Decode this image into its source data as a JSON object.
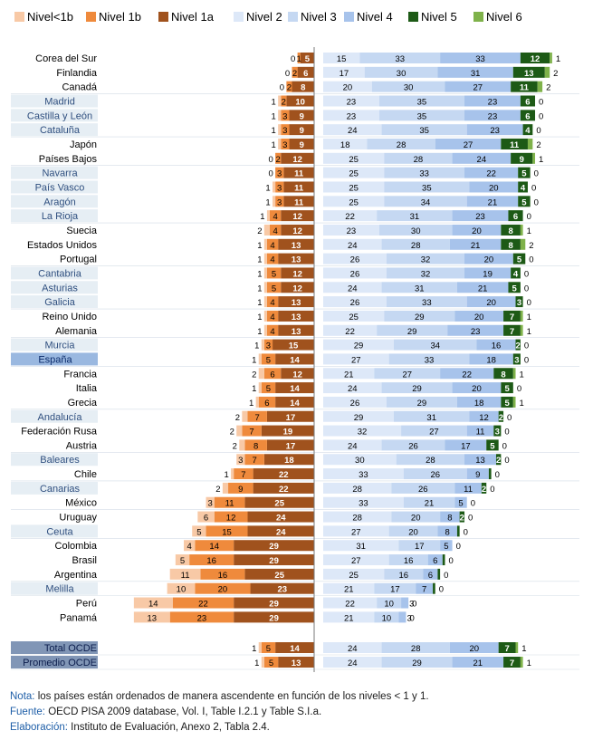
{
  "chart_data": {
    "type": "bar",
    "orientation": "horizontal-diverging",
    "title": "",
    "levels": [
      "Nivel<1b",
      "Nivel 1b",
      "Nivel 1a",
      "Nivel 2",
      "Nivel 3",
      "Nivel 4",
      "Nivel 5",
      "Nivel 6"
    ],
    "level_colors": [
      "#f8c9a6",
      "#ef8a3c",
      "#a0521d",
      "#dde8f8",
      "#c5d8f2",
      "#a7c3eb",
      "#1d5a16",
      "#7fb24a"
    ],
    "xlim_left": [
      0,
      63
    ],
    "xlim_right": [
      0,
      100
    ],
    "rows": [
      {
        "name": "Corea del Sur",
        "region": false,
        "v": [
          0,
          1,
          5,
          15,
          33,
          33,
          12,
          1
        ]
      },
      {
        "name": "Finlandia",
        "region": false,
        "v": [
          0,
          2,
          6,
          17,
          30,
          31,
          13,
          2
        ]
      },
      {
        "name": "Canadá",
        "region": false,
        "v": [
          0,
          2,
          8,
          20,
          30,
          27,
          11,
          2
        ]
      },
      {
        "name": "Madrid",
        "region": true,
        "v": [
          1,
          2,
          10,
          23,
          35,
          23,
          6,
          0
        ]
      },
      {
        "name": "Castilla y León",
        "region": true,
        "v": [
          1,
          3,
          9,
          23,
          35,
          23,
          6,
          0
        ]
      },
      {
        "name": "Cataluña",
        "region": true,
        "v": [
          1,
          3,
          9,
          24,
          35,
          23,
          4,
          0
        ]
      },
      {
        "name": "Japón",
        "region": false,
        "v": [
          1,
          3,
          9,
          18,
          28,
          27,
          11,
          2
        ]
      },
      {
        "name": "Países Bajos",
        "region": false,
        "v": [
          0,
          2,
          12,
          25,
          28,
          24,
          9,
          1
        ]
      },
      {
        "name": "Navarra",
        "region": true,
        "v": [
          0,
          3,
          11,
          25,
          33,
          22,
          5,
          0
        ]
      },
      {
        "name": "País Vasco",
        "region": true,
        "v": [
          1,
          3,
          11,
          25,
          35,
          20,
          4,
          0
        ]
      },
      {
        "name": "Aragón",
        "region": true,
        "v": [
          1,
          3,
          11,
          25,
          34,
          21,
          5,
          0
        ]
      },
      {
        "name": "La Rioja",
        "region": true,
        "v": [
          1,
          4,
          12,
          22,
          31,
          23,
          6,
          0
        ]
      },
      {
        "name": "Suecia",
        "region": false,
        "v": [
          2,
          4,
          12,
          23,
          30,
          20,
          8,
          1
        ]
      },
      {
        "name": "Estados Unidos",
        "region": false,
        "v": [
          1,
          4,
          13,
          24,
          28,
          21,
          8,
          2
        ]
      },
      {
        "name": "Portugal",
        "region": false,
        "v": [
          1,
          4,
          13,
          26,
          32,
          20,
          5,
          0
        ]
      },
      {
        "name": "Cantabria",
        "region": true,
        "v": [
          1,
          5,
          12,
          26,
          32,
          19,
          4,
          0
        ]
      },
      {
        "name": "Asturias",
        "region": true,
        "v": [
          1,
          5,
          12,
          24,
          31,
          21,
          5,
          0
        ]
      },
      {
        "name": "Galicia",
        "region": true,
        "v": [
          1,
          4,
          13,
          26,
          33,
          20,
          3,
          0
        ]
      },
      {
        "name": "Reino Unido",
        "region": false,
        "v": [
          1,
          4,
          13,
          25,
          29,
          20,
          7,
          1
        ]
      },
      {
        "name": "Alemania",
        "region": false,
        "v": [
          1,
          4,
          13,
          22,
          29,
          23,
          7,
          1
        ]
      },
      {
        "name": "Murcia",
        "region": true,
        "v": [
          1,
          3,
          15,
          29,
          34,
          16,
          2,
          0
        ]
      },
      {
        "name": "España",
        "region": true,
        "highlight": true,
        "v": [
          1,
          5,
          14,
          27,
          33,
          18,
          3,
          0
        ]
      },
      {
        "name": "Francia",
        "region": false,
        "v": [
          2,
          6,
          12,
          21,
          27,
          22,
          8,
          1
        ]
      },
      {
        "name": "Italia",
        "region": false,
        "v": [
          1,
          5,
          14,
          24,
          29,
          20,
          5,
          0
        ]
      },
      {
        "name": "Grecia",
        "region": false,
        "v": [
          1,
          6,
          14,
          26,
          29,
          18,
          5,
          1
        ]
      },
      {
        "name": "Andalucía",
        "region": true,
        "v": [
          2,
          7,
          17,
          29,
          31,
          12,
          2,
          0
        ]
      },
      {
        "name": "Federación Rusa",
        "region": false,
        "v": [
          2,
          7,
          19,
          32,
          27,
          11,
          3,
          0
        ]
      },
      {
        "name": "Austria",
        "region": false,
        "v": [
          2,
          8,
          17,
          24,
          26,
          17,
          5,
          0
        ]
      },
      {
        "name": "Baleares",
        "region": true,
        "v": [
          3,
          7,
          18,
          30,
          28,
          13,
          2,
          0
        ]
      },
      {
        "name": "Chile",
        "region": false,
        "v": [
          1,
          7,
          22,
          33,
          26,
          9,
          1,
          0
        ]
      },
      {
        "name": "Canarias",
        "region": true,
        "v": [
          2,
          9,
          22,
          28,
          26,
          11,
          2,
          0
        ]
      },
      {
        "name": "México",
        "region": false,
        "v": [
          3,
          11,
          25,
          33,
          21,
          5,
          0,
          0
        ]
      },
      {
        "name": "Uruguay",
        "region": false,
        "v": [
          6,
          12,
          24,
          28,
          20,
          8,
          2,
          0
        ]
      },
      {
        "name": "Ceuta",
        "region": true,
        "v": [
          5,
          15,
          24,
          27,
          20,
          8,
          1,
          0
        ]
      },
      {
        "name": "Colombia",
        "region": false,
        "v": [
          4,
          14,
          29,
          31,
          17,
          5,
          0,
          0
        ]
      },
      {
        "name": "Brasil",
        "region": false,
        "v": [
          5,
          16,
          29,
          27,
          16,
          6,
          1,
          0
        ]
      },
      {
        "name": "Argentina",
        "region": false,
        "v": [
          11,
          16,
          25,
          25,
          16,
          6,
          1,
          0
        ]
      },
      {
        "name": "Melilla",
        "region": true,
        "v": [
          10,
          20,
          23,
          21,
          17,
          7,
          1,
          0
        ]
      },
      {
        "name": "Perú",
        "region": false,
        "v": [
          14,
          22,
          29,
          22,
          10,
          3,
          0,
          0
        ]
      },
      {
        "name": "Panamá",
        "region": false,
        "v": [
          13,
          23,
          29,
          21,
          10,
          3,
          0,
          0
        ]
      }
    ],
    "totals": [
      {
        "name": "Total OCDE",
        "v": [
          1,
          5,
          14,
          24,
          28,
          20,
          7,
          1
        ]
      },
      {
        "name": "Promedio OCDE",
        "v": [
          1,
          5,
          13,
          24,
          29,
          21,
          7,
          1
        ]
      }
    ]
  },
  "notes": {
    "nota_label": "Nota:",
    "nota_text": " los países están ordenados de manera ascendente en función de los niveles < 1 y 1.",
    "fuente_label": "Fuente:",
    "fuente_text": " OECD PISA 2009 database, Vol. I, Table I.2.1 y Table S.I.a.",
    "elaboracion_label": "Elaboración:",
    "elaboracion_text": " Instituto de Evaluación, Anexo 2, Tabla 2.4."
  }
}
